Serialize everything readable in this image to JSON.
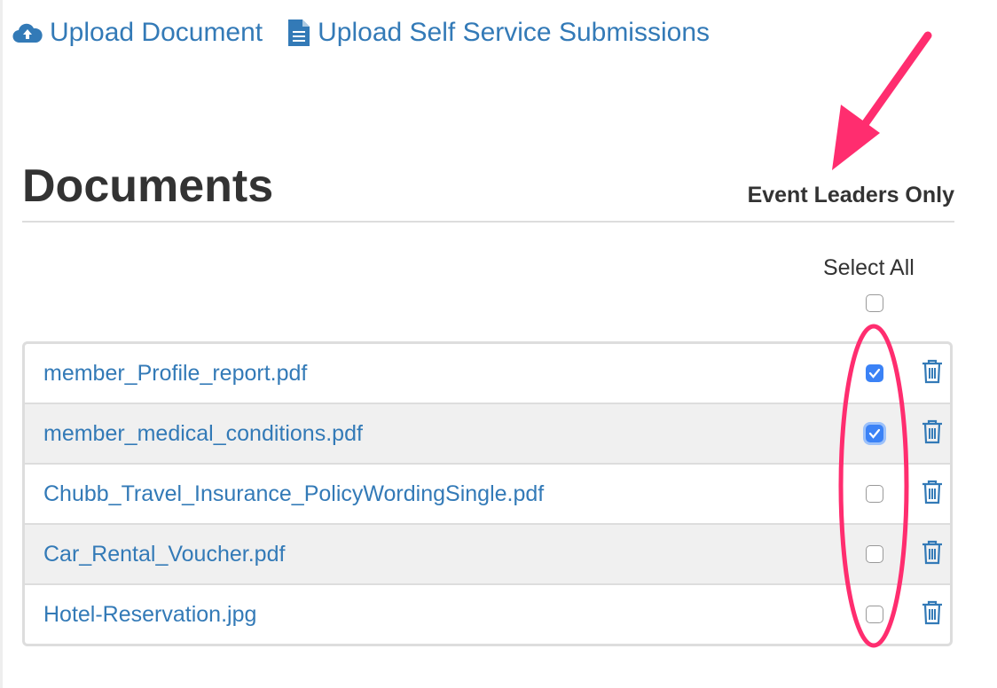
{
  "top_links": [
    {
      "label": "Upload Document",
      "icon": "cloud-upload-icon"
    },
    {
      "label": "Upload Self Service Submissions",
      "icon": "file-text-icon"
    }
  ],
  "documents": {
    "title": "Documents",
    "column_header": "Event Leaders Only",
    "select_all_label": "Select All",
    "select_all_checked": false,
    "files": [
      {
        "name": "member_Profile_report.pdf",
        "checked": true
      },
      {
        "name": "member_medical_conditions.pdf",
        "checked": true
      },
      {
        "name": "Chubb_Travel_Insurance_PolicyWordingSingle.pdf",
        "checked": false
      },
      {
        "name": "Car_Rental_Voucher.pdf",
        "checked": false
      },
      {
        "name": "Hotel-Reservation.jpg",
        "checked": false
      }
    ]
  },
  "colors": {
    "link": "#337ab7",
    "checkbox": "#3b82f6",
    "annotation": "#ff2d6f"
  }
}
